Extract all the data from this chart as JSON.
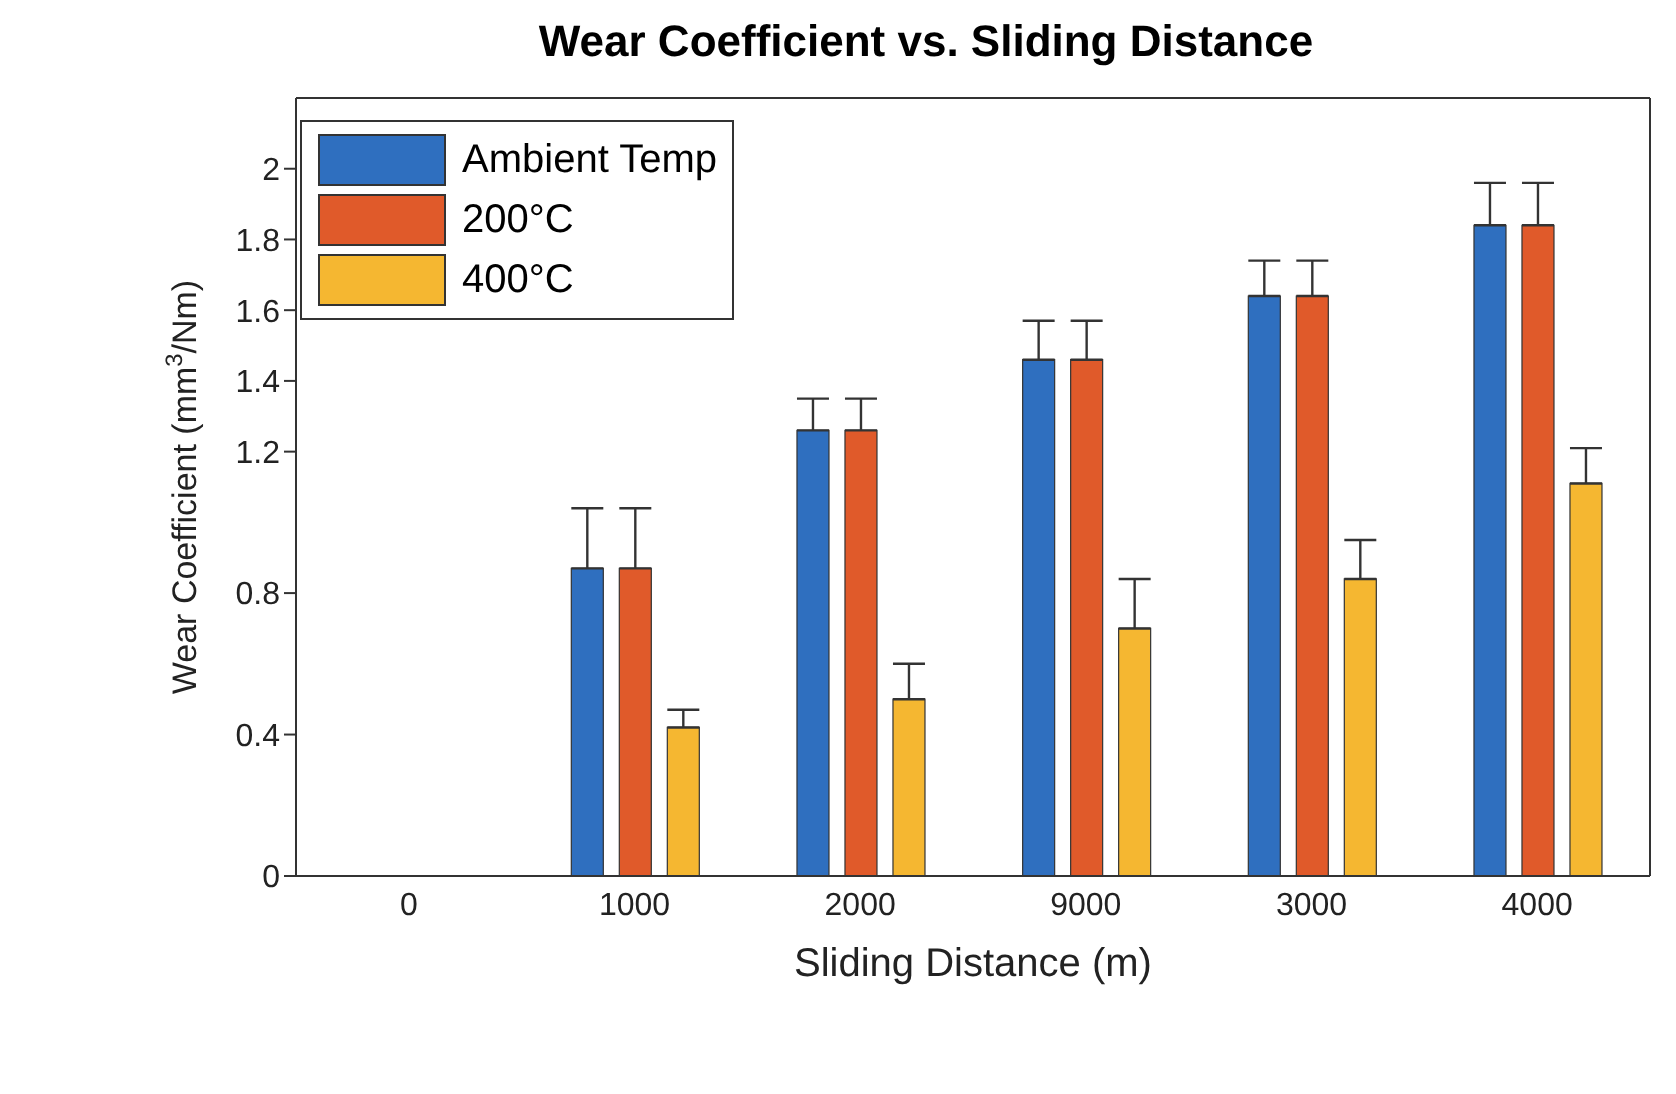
{
  "chart_data": {
    "type": "bar",
    "title": "Wear Coefficient vs. Sliding Distance",
    "xlabel": "Sliding Distance (m)",
    "ylabel": "Wear Coefficient (mm$^{3}$/Nm)",
    "categories": [
      "0",
      "1000",
      "2000",
      "9000",
      "3000",
      "4000"
    ],
    "series": [
      {
        "name": "Ambient Temp",
        "color": "#2f6fbf",
        "values": [
          null,
          0.87,
          1.26,
          1.46,
          1.64,
          1.84
        ],
        "errors": [
          null,
          [
            0.87,
            1.04
          ],
          [
            1.26,
            1.35
          ],
          [
            1.46,
            1.57
          ],
          [
            1.64,
            1.74
          ],
          [
            1.84,
            1.96
          ]
        ]
      },
      {
        "name": "200°C",
        "color": "#e05a2a",
        "values": [
          null,
          0.87,
          1.26,
          1.46,
          1.64,
          1.84
        ],
        "errors": [
          null,
          [
            0.87,
            1.04
          ],
          [
            1.26,
            1.35
          ],
          [
            1.46,
            1.57
          ],
          [
            1.64,
            1.74
          ],
          [
            1.84,
            1.96
          ]
        ]
      },
      {
        "name": "400°C",
        "color": "#f5b731",
        "values": [
          null,
          0.42,
          0.5,
          0.7,
          0.84,
          1.11
        ],
        "errors": [
          null,
          [
            0.42,
            0.47
          ],
          [
            0.5,
            0.6
          ],
          [
            0.7,
            0.84
          ],
          [
            0.84,
            0.95
          ],
          [
            1.11,
            1.21
          ]
        ]
      }
    ],
    "ylim": [
      0,
      2.2
    ],
    "yticks": [
      0,
      0.4,
      0.8,
      1.2,
      1.4,
      1.6,
      1.8,
      2
    ],
    "grid": false,
    "legend": "top left"
  }
}
